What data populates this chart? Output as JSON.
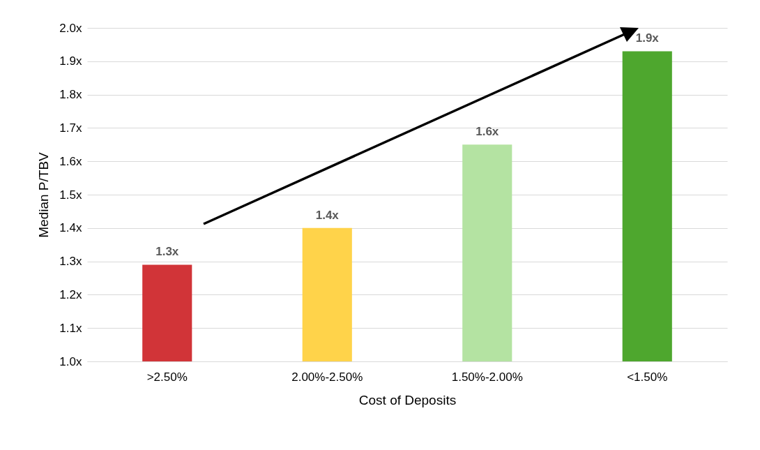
{
  "chart_data": {
    "type": "bar",
    "xlabel": "Cost of Deposits",
    "ylabel": "Median P/TBV",
    "categories": [
      ">2.50%",
      "2.00%-2.50%",
      "1.50%-2.00%",
      "<1.50%"
    ],
    "values": [
      1.29,
      1.4,
      1.65,
      1.93
    ],
    "colors": [
      "#d13438",
      "#ffd34a",
      "#b4e3a2",
      "#4ea72e"
    ],
    "value_labels": [
      "1.3x",
      "1.4x",
      "1.6x",
      "1.9x"
    ],
    "ylim": [
      1.0,
      2.0
    ],
    "yticks": [
      {
        "value": 1.0,
        "label": "1.0x"
      },
      {
        "value": 1.1,
        "label": "1.1x"
      },
      {
        "value": 1.2,
        "label": "1.2x"
      },
      {
        "value": 1.3,
        "label": "1.3x"
      },
      {
        "value": 1.4,
        "label": "1.4x"
      },
      {
        "value": 1.5,
        "label": "1.5x"
      },
      {
        "value": 1.6,
        "label": "1.6x"
      },
      {
        "value": 1.7,
        "label": "1.7x"
      },
      {
        "value": 1.8,
        "label": "1.8x"
      },
      {
        "value": 1.9,
        "label": "1.9x"
      },
      {
        "value": 2.0,
        "label": "2.0x"
      }
    ],
    "grid": "y",
    "legend": false
  }
}
